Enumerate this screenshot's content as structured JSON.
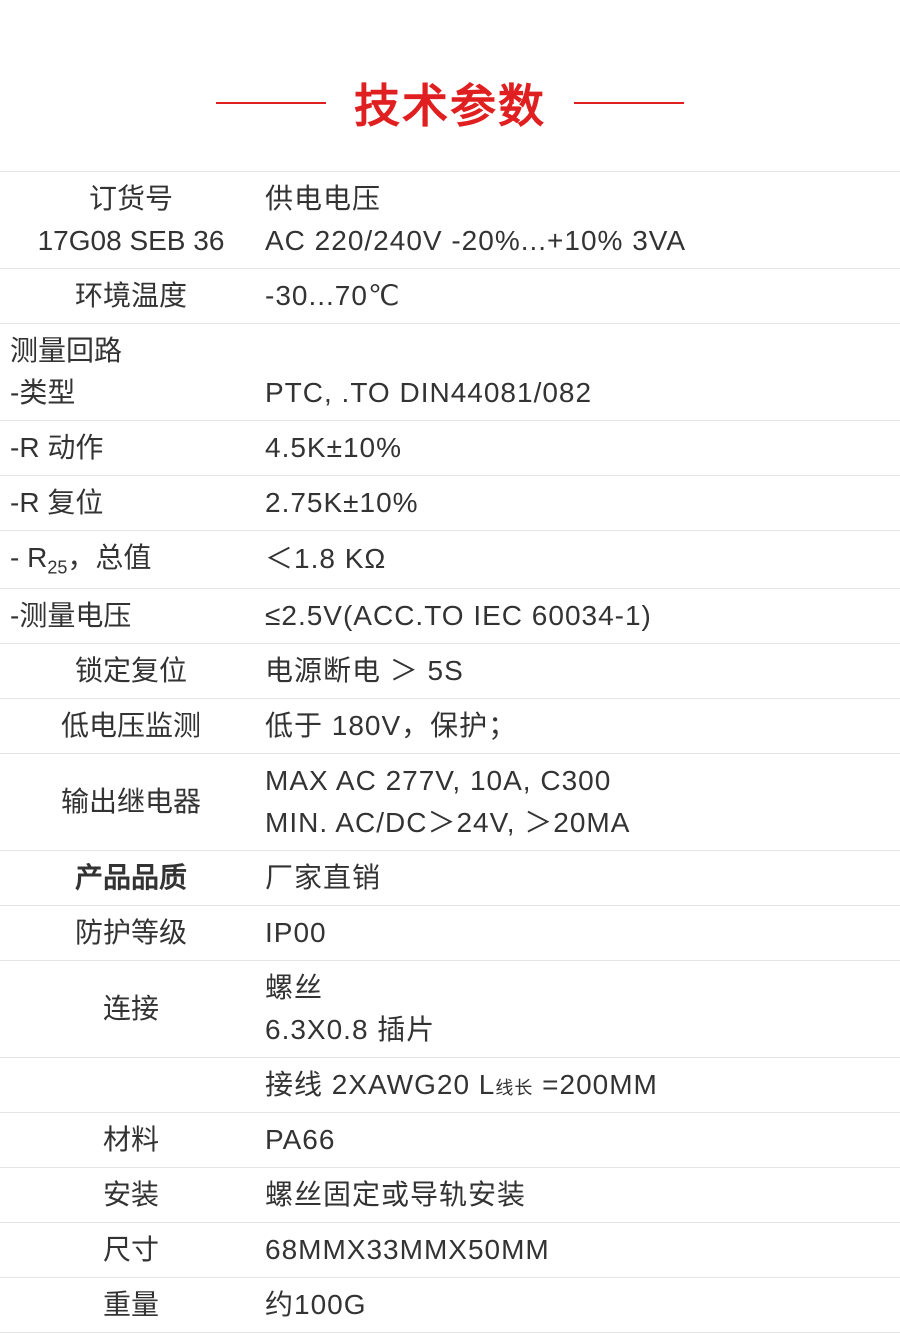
{
  "header": {
    "title": "技术参数",
    "title_color": "#e02020",
    "line_color": "#e02020"
  },
  "table": {
    "type": "table",
    "border_color": "#e5e5e5",
    "text_color": "#333333",
    "font_size": 28,
    "label_width": 250,
    "rows": [
      {
        "label_lines": [
          "订货号",
          "17G08 SEB 36"
        ],
        "value_lines": [
          "供电电压",
          "AC 220/240V -20%...+10% 3VA"
        ],
        "label_align": "center"
      },
      {
        "label_lines": [
          "环境温度"
        ],
        "value_lines": [
          "-30...70℃"
        ],
        "label_align": "center"
      },
      {
        "label_lines": [
          "测量回路",
          "-类型"
        ],
        "value_lines": [
          "",
          "PTC, .TO DIN44081/082"
        ],
        "label_align": "left"
      },
      {
        "label_lines": [
          "-R 动作"
        ],
        "value_lines": [
          "4.5K±10%"
        ],
        "label_align": "left"
      },
      {
        "label_lines": [
          "-R 复位"
        ],
        "value_lines": [
          "2.75K±10%"
        ],
        "label_align": "left"
      },
      {
        "label_lines": [
          "- R₂₅，总值"
        ],
        "value_lines": [
          "＜1.8 KΩ"
        ],
        "label_align": "left",
        "has_subscript": true,
        "label_raw": "- R",
        "label_sub": "25",
        "label_after": "，总值"
      },
      {
        "label_lines": [
          "-测量电压"
        ],
        "value_lines": [
          "≤2.5V(ACC.TO IEC 60034-1)"
        ],
        "label_align": "left"
      },
      {
        "label_lines": [
          "锁定复位"
        ],
        "value_lines": [
          "电源断电 ＞ 5S"
        ],
        "label_align": "center"
      },
      {
        "label_lines": [
          "低电压监测"
        ],
        "value_lines": [
          "低于 180V，保护；"
        ],
        "label_align": "center"
      },
      {
        "label_lines": [
          "输出继电器"
        ],
        "value_lines": [
          "MAX AC 277V, 10A, C300",
          "MIN. AC/DC＞24V, ＞20MA"
        ],
        "label_align": "center"
      },
      {
        "label_lines": [
          "产品品质"
        ],
        "value_lines": [
          "厂家直销"
        ],
        "label_align": "center",
        "label_bold": true
      },
      {
        "label_lines": [
          "防护等级"
        ],
        "value_lines": [
          "IP00"
        ],
        "label_align": "center"
      },
      {
        "label_lines": [
          "连接"
        ],
        "value_lines": [
          "螺丝",
          "6.3X0.8 插片"
        ],
        "label_align": "center"
      },
      {
        "label_lines": [
          ""
        ],
        "value_lines": [
          "接线 2XAWG20  L线长 =200MM"
        ],
        "label_align": "center",
        "has_small": true,
        "value_raw_before": "接线 2XAWG20  L",
        "value_small": "线长",
        "value_raw_after": " =200MM"
      },
      {
        "label_lines": [
          "材料"
        ],
        "value_lines": [
          "PA66"
        ],
        "label_align": "center"
      },
      {
        "label_lines": [
          "安装"
        ],
        "value_lines": [
          "螺丝固定或导轨安装"
        ],
        "label_align": "center"
      },
      {
        "label_lines": [
          "尺寸"
        ],
        "value_lines": [
          "68MMX33MMX50MM"
        ],
        "label_align": "center"
      },
      {
        "label_lines": [
          "重量"
        ],
        "value_lines": [
          "约100G"
        ],
        "label_align": "center"
      }
    ]
  }
}
